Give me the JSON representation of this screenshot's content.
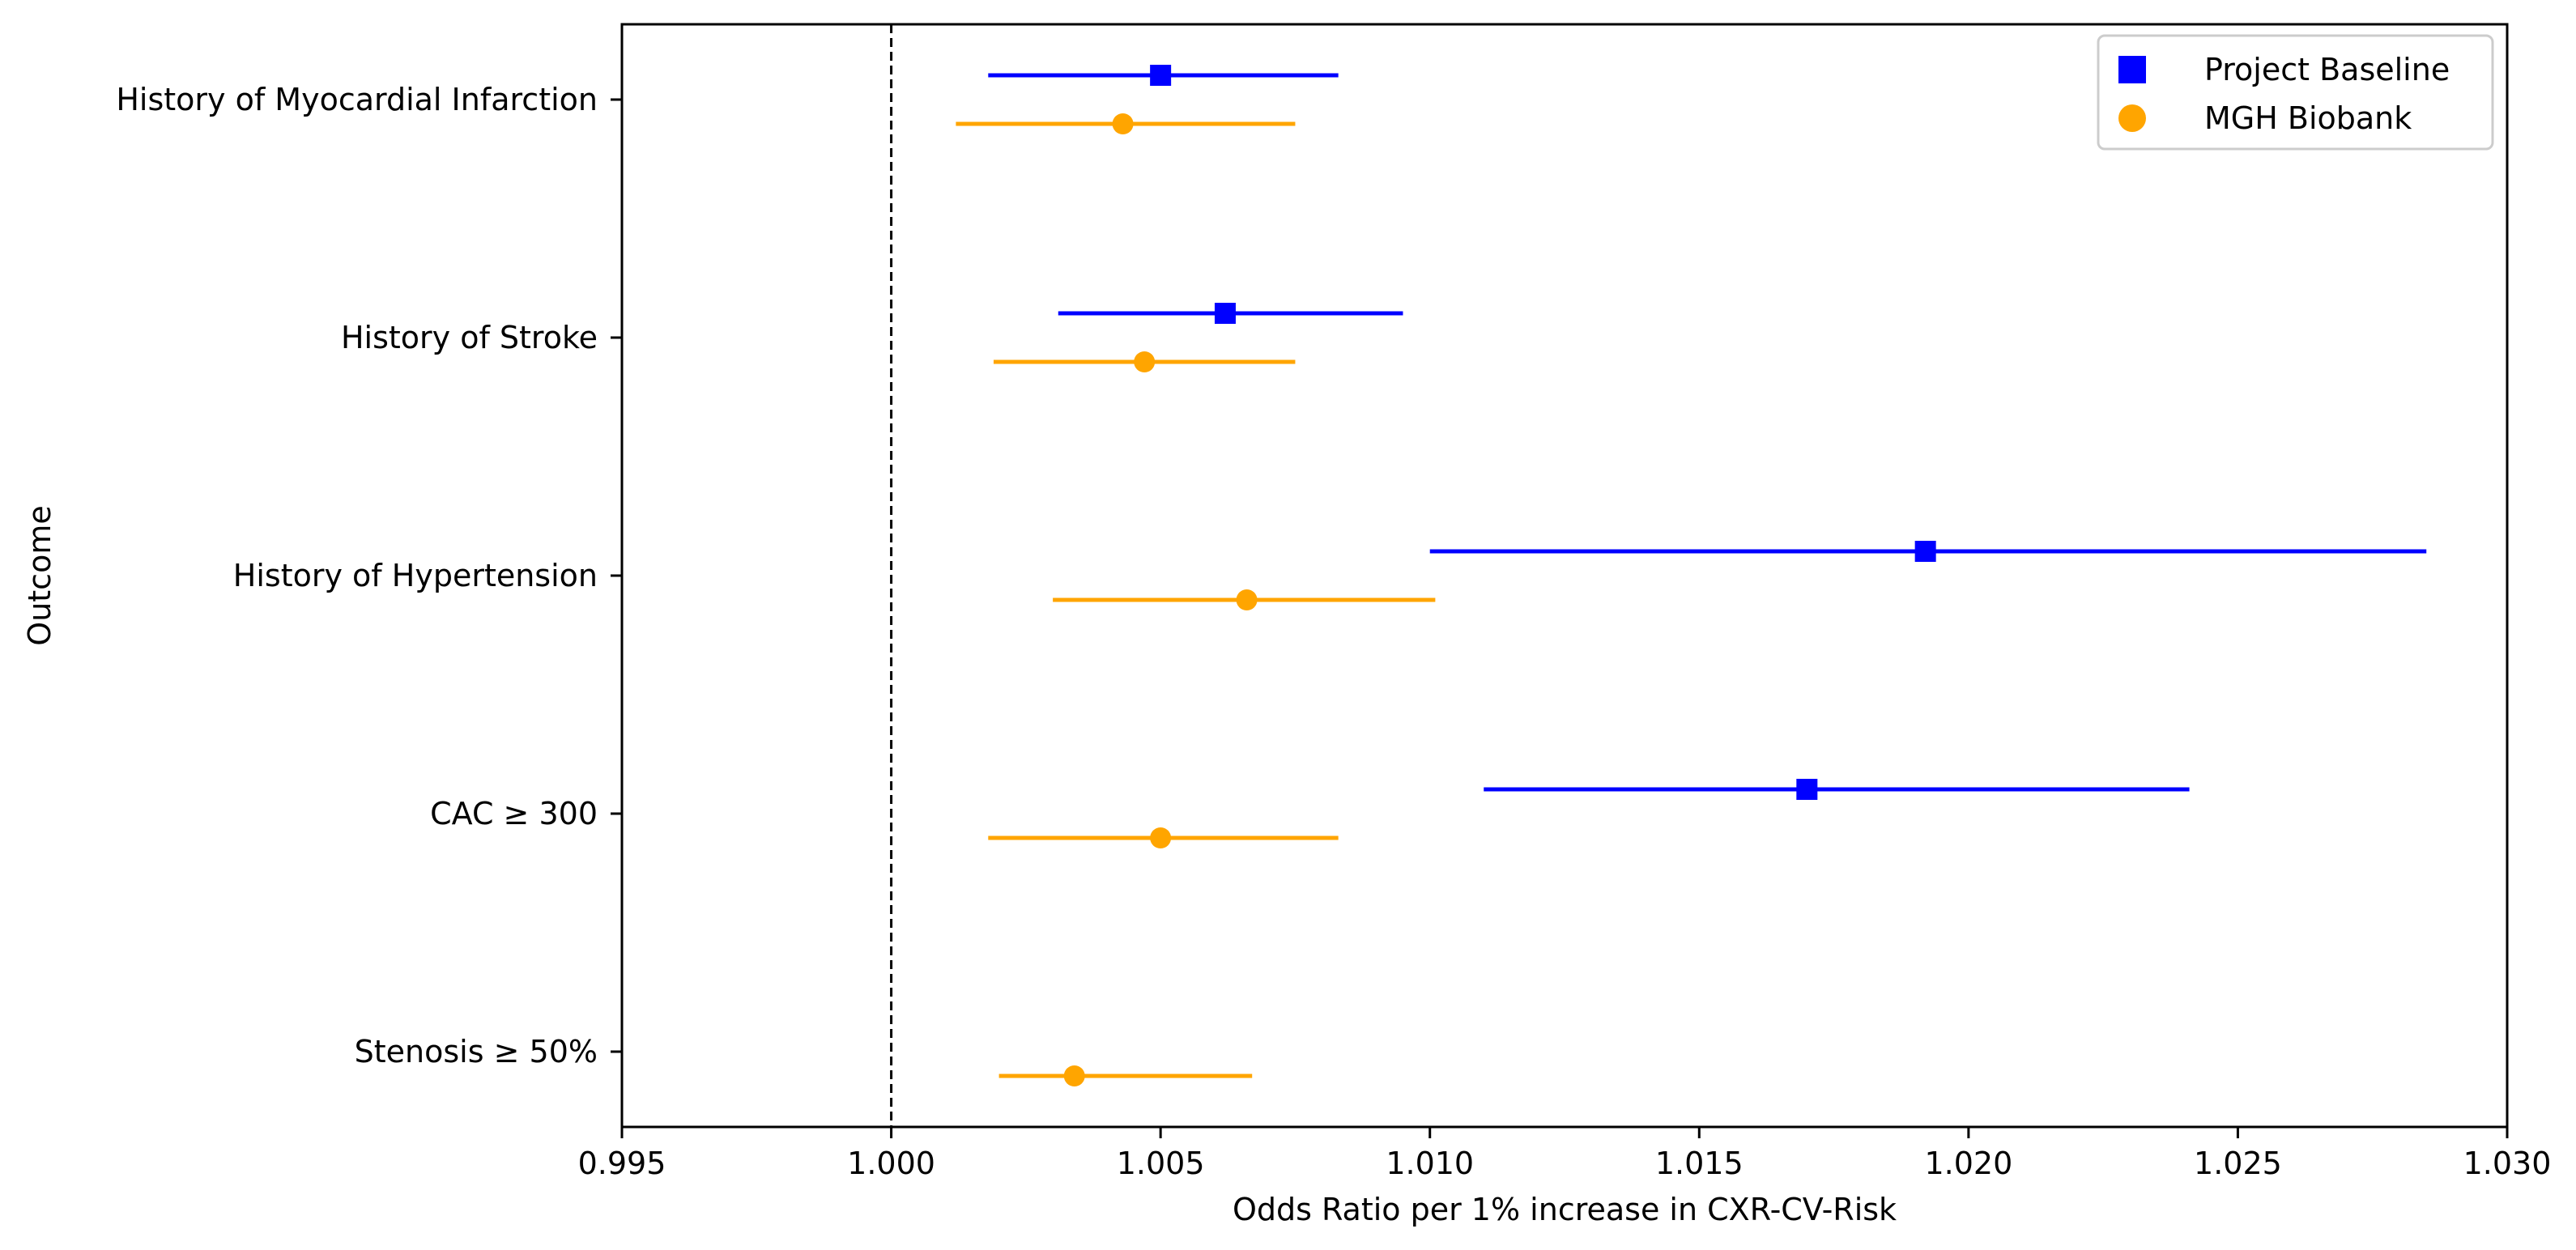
{
  "chart_data": {
    "type": "forest",
    "xlabel": "Odds Ratio per 1% increase in CXR-CV-Risk",
    "ylabel": "Outcome",
    "xlim": [
      0.995,
      1.03
    ],
    "x_ticks": [
      "0.995",
      "1.000",
      "1.005",
      "1.010",
      "1.015",
      "1.020",
      "1.025",
      "1.030"
    ],
    "reference_line": 1.0,
    "grid": false,
    "legend_position": "top-right",
    "categories": [
      "History of Myocardial Infarction",
      "History of Stroke",
      "History of Hypertension",
      "CAC ≥ 300",
      "Stenosis ≥ 50%"
    ],
    "series": [
      {
        "name": "Project Baseline",
        "color": "#0000ff",
        "marker": "square",
        "points": [
          {
            "category": "History of Myocardial Infarction",
            "or": 1.005,
            "low": 1.0018,
            "high": 1.0083
          },
          {
            "category": "History of Stroke",
            "or": 1.0062,
            "low": 1.0031,
            "high": 1.0095
          },
          {
            "category": "History of Hypertension",
            "or": 1.0192,
            "low": 1.01,
            "high": 1.0285
          },
          {
            "category": "CAC ≥ 300",
            "or": 1.017,
            "low": 1.011,
            "high": 1.0241
          }
        ]
      },
      {
        "name": "MGH Biobank",
        "color": "#ffa500",
        "marker": "circle",
        "points": [
          {
            "category": "History of Myocardial Infarction",
            "or": 1.0043,
            "low": 1.0012,
            "high": 1.0075
          },
          {
            "category": "History of Stroke",
            "or": 1.0047,
            "low": 1.0019,
            "high": 1.0075
          },
          {
            "category": "History of Hypertension",
            "or": 1.0066,
            "low": 1.003,
            "high": 1.0101
          },
          {
            "category": "CAC ≥ 300",
            "or": 1.005,
            "low": 1.0018,
            "high": 1.0083
          },
          {
            "category": "Stenosis ≥ 50%",
            "or": 1.0034,
            "low": 1.002,
            "high": 1.0067
          }
        ]
      }
    ]
  }
}
